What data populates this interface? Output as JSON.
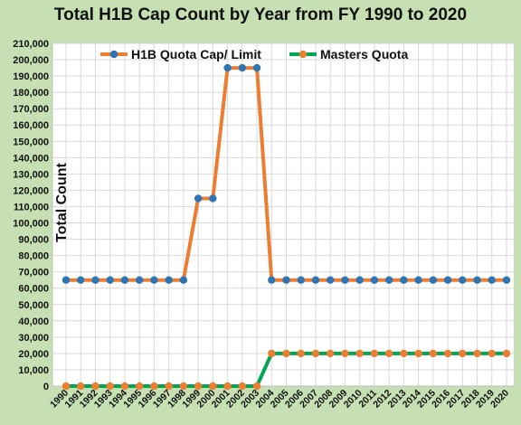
{
  "chart_data": {
    "type": "line",
    "title": "Total H1B Cap Count  by Year from FY 1990 to 2020",
    "xlabel": "",
    "ylabel": "Total Count",
    "ylim": [
      0,
      210000
    ],
    "ytick_step": 10000,
    "grid": true,
    "legend_position": "top",
    "x": [
      "1990",
      "1991",
      "1992",
      "1993",
      "1994",
      "1995",
      "1996",
      "1997",
      "1998",
      "1999",
      "2000",
      "2001",
      "2002",
      "2003",
      "2004",
      "2005",
      "2006",
      "2007",
      "2008",
      "2009",
      "2010",
      "2011",
      "2012",
      "2013",
      "2014",
      "2015",
      "2016",
      "2017",
      "2018",
      "2019",
      "2020"
    ],
    "series": [
      {
        "name": "H1B Quota Cap/ Limit",
        "line_color": "#ed7d31",
        "marker_color": "#2e75b6",
        "values": [
          65000,
          65000,
          65000,
          65000,
          65000,
          65000,
          65000,
          65000,
          65000,
          115000,
          115000,
          195000,
          195000,
          195000,
          65000,
          65000,
          65000,
          65000,
          65000,
          65000,
          65000,
          65000,
          65000,
          65000,
          65000,
          65000,
          65000,
          65000,
          65000,
          65000,
          65000
        ]
      },
      {
        "name": "Masters Quota",
        "line_color": "#00a651",
        "marker_color": "#ed7d31",
        "values": [
          0,
          0,
          0,
          0,
          0,
          0,
          0,
          0,
          0,
          0,
          0,
          0,
          0,
          0,
          20000,
          20000,
          20000,
          20000,
          20000,
          20000,
          20000,
          20000,
          20000,
          20000,
          20000,
          20000,
          20000,
          20000,
          20000,
          20000,
          20000
        ]
      }
    ]
  }
}
